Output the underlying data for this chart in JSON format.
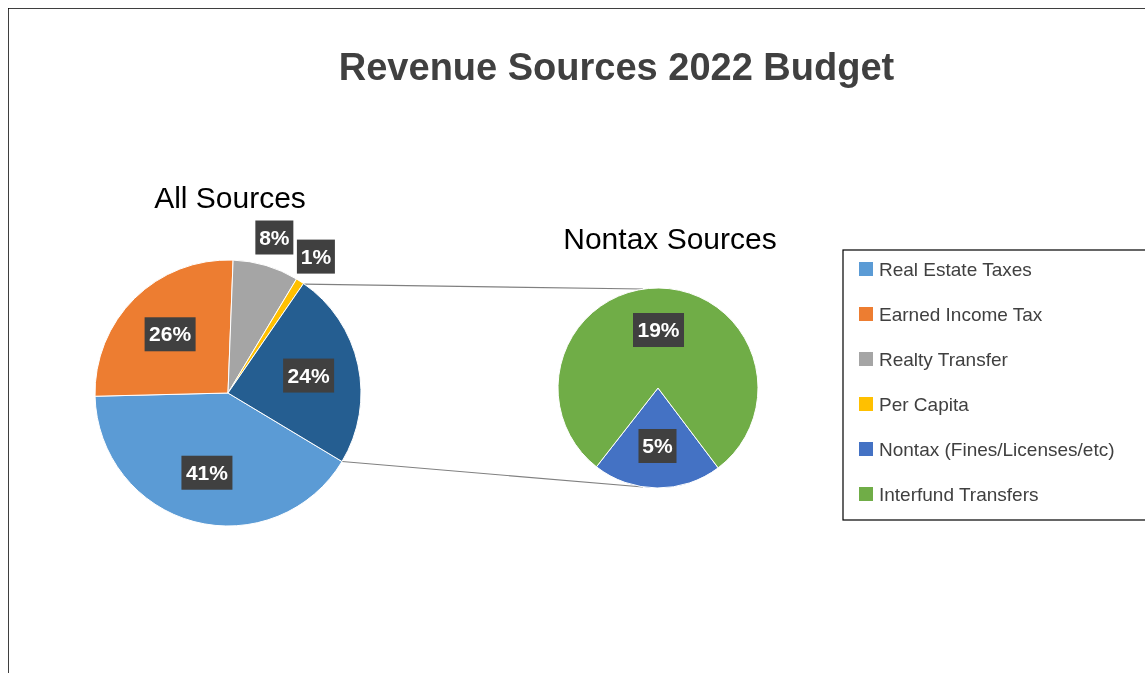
{
  "chart_data": [
    {
      "type": "pie",
      "title": "Revenue Sources 2022 Budget",
      "subtitle": "All Sources",
      "categories": [
        "Real Estate Taxes",
        "Earned Income Tax",
        "Realty Transfer",
        "Per Capita",
        null
      ],
      "values": [
        41,
        26,
        8,
        1,
        24
      ],
      "colors": [
        "#5b9bd5",
        "#ed7d31",
        "#a5a5a5",
        "#ffc000",
        "#255e91"
      ],
      "value_labels": [
        "41%",
        "26%",
        "8%",
        "1%",
        "24%"
      ],
      "legend": "right"
    },
    {
      "type": "pie",
      "title": "Nontax Sources",
      "categories": [
        "Nontax (Fines/Licenses/etc)",
        "Interfund Transfers"
      ],
      "values": [
        5,
        19
      ],
      "colors": [
        "#4472c4",
        "#70ad47"
      ],
      "value_labels": [
        "5%",
        "19%"
      ],
      "legend": "right"
    }
  ]
}
